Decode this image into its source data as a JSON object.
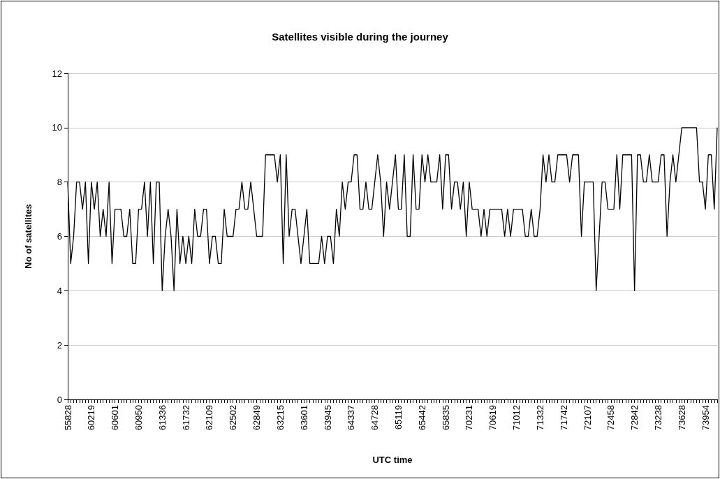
{
  "chart_data": {
    "type": "line",
    "title": "Satellites visible during the journey",
    "xlabel": "UTC time",
    "ylabel": "No of satellites",
    "categories": [
      "55828",
      null,
      null,
      null,
      null,
      null,
      null,
      null,
      "60219",
      null,
      null,
      null,
      null,
      null,
      null,
      null,
      "60601",
      null,
      null,
      null,
      null,
      null,
      null,
      null,
      "60950",
      null,
      null,
      null,
      null,
      null,
      null,
      null,
      "61336",
      null,
      null,
      null,
      null,
      null,
      null,
      null,
      "61732",
      null,
      null,
      null,
      null,
      null,
      null,
      null,
      "62109",
      null,
      null,
      null,
      null,
      null,
      null,
      null,
      "62502",
      null,
      null,
      null,
      null,
      null,
      null,
      null,
      "62849",
      null,
      null,
      null,
      null,
      null,
      null,
      null,
      "63215",
      null,
      null,
      null,
      null,
      null,
      null,
      null,
      "63601",
      null,
      null,
      null,
      null,
      null,
      null,
      null,
      "63945",
      null,
      null,
      null,
      null,
      null,
      null,
      null,
      "64337",
      null,
      null,
      null,
      null,
      null,
      null,
      null,
      "64728",
      null,
      null,
      null,
      null,
      null,
      null,
      null,
      "65119",
      null,
      null,
      null,
      null,
      null,
      null,
      null,
      "65442",
      null,
      null,
      null,
      null,
      null,
      null,
      null,
      "65835",
      null,
      null,
      null,
      null,
      null,
      null,
      null,
      "70231",
      null,
      null,
      null,
      null,
      null,
      null,
      null,
      "70619",
      null,
      null,
      null,
      null,
      null,
      null,
      null,
      "71012",
      null,
      null,
      null,
      null,
      null,
      null,
      null,
      "71332",
      null,
      null,
      null,
      null,
      null,
      null,
      null,
      "71742",
      null,
      null,
      null,
      null,
      null,
      null,
      null,
      "72107",
      null,
      null,
      null,
      null,
      null,
      null,
      null,
      "72458",
      null,
      null,
      null,
      null,
      null,
      null,
      null,
      "72842",
      null,
      null,
      null,
      null,
      null,
      null,
      null,
      "73238",
      null,
      null,
      null,
      null,
      null,
      null,
      null,
      "73628",
      null,
      null,
      null,
      null,
      null,
      null,
      null,
      "73954",
      null,
      null,
      null,
      null
    ],
    "series": [
      {
        "color": "#000000",
        "values": [
          8,
          5,
          6,
          8,
          8,
          7,
          8,
          5,
          8,
          7,
          8,
          6,
          7,
          6,
          8,
          5,
          7,
          7,
          7,
          6,
          6,
          7,
          5,
          5,
          7,
          7,
          8,
          6,
          8,
          5,
          8,
          8,
          4,
          6,
          7,
          6,
          4,
          7,
          5,
          6,
          5,
          6,
          5,
          7,
          6,
          6,
          7,
          7,
          5,
          6,
          6,
          5,
          5,
          7,
          6,
          6,
          6,
          7,
          7,
          8,
          7,
          7,
          8,
          7,
          6,
          6,
          6,
          9,
          9,
          9,
          9,
          8,
          9,
          5,
          9,
          6,
          7,
          7,
          6,
          5,
          6,
          7,
          5,
          5,
          5,
          5,
          6,
          5,
          6,
          6,
          5,
          7,
          6,
          8,
          7,
          8,
          8,
          9,
          9,
          7,
          7,
          8,
          7,
          7,
          8,
          9,
          8,
          6,
          8,
          7,
          8,
          9,
          7,
          7,
          9,
          6,
          6,
          9,
          7,
          7,
          9,
          8,
          9,
          8,
          8,
          8,
          9,
          7,
          9,
          9,
          7,
          8,
          8,
          7,
          8,
          6,
          8,
          7,
          7,
          7,
          6,
          7,
          6,
          7,
          7,
          7,
          7,
          7,
          6,
          7,
          6,
          7,
          7,
          7,
          7,
          6,
          6,
          7,
          6,
          6,
          7,
          9,
          8,
          9,
          8,
          8,
          9,
          9,
          9,
          9,
          8,
          9,
          9,
          9,
          6,
          8,
          8,
          8,
          8,
          4,
          6,
          8,
          8,
          7,
          7,
          7,
          9,
          7,
          9,
          9,
          9,
          9,
          4,
          9,
          9,
          8,
          8,
          9,
          8,
          8,
          8,
          9,
          9,
          6,
          8,
          9,
          8,
          9,
          10,
          10,
          10,
          10,
          10,
          10,
          8,
          8,
          7,
          9,
          9,
          7,
          10
        ]
      }
    ],
    "ylim": [
      0,
      12
    ],
    "yticks": [
      0,
      2,
      4,
      6,
      8,
      10,
      12
    ],
    "grid": "y",
    "marker": "none",
    "line_style": "solid"
  }
}
